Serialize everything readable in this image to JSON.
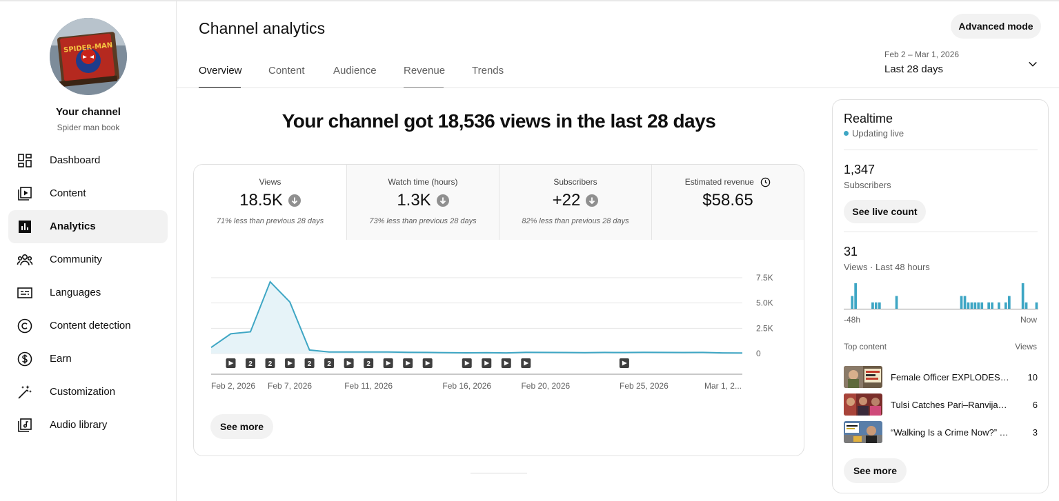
{
  "sidebar": {
    "channel_label": "Your channel",
    "channel_name": "Spider man book",
    "avatar_text": "SPIDER-MAN",
    "items": [
      {
        "label": "Dashboard",
        "icon": "dashboard-icon"
      },
      {
        "label": "Content",
        "icon": "content-icon"
      },
      {
        "label": "Analytics",
        "icon": "analytics-icon",
        "active": true
      },
      {
        "label": "Community",
        "icon": "community-icon"
      },
      {
        "label": "Languages",
        "icon": "languages-icon"
      },
      {
        "label": "Content detection",
        "icon": "copyright-icon"
      },
      {
        "label": "Earn",
        "icon": "dollar-icon"
      },
      {
        "label": "Customization",
        "icon": "magic-wand-icon"
      },
      {
        "label": "Audio library",
        "icon": "audio-library-icon"
      }
    ]
  },
  "header": {
    "title": "Channel analytics",
    "advanced_mode": "Advanced mode",
    "tabs": [
      "Overview",
      "Content",
      "Audience",
      "Revenue",
      "Trends"
    ],
    "active_tab": "Overview",
    "date_range_small": "Feb 2 – Mar 1, 2026",
    "date_range_label": "Last 28 days"
  },
  "main": {
    "headline": "Your channel got 18,536 views in the last 28 days",
    "metrics": [
      {
        "label": "Views",
        "value": "18.5K",
        "note": "71% less than previous 28 days",
        "trend": "down"
      },
      {
        "label": "Watch time (hours)",
        "value": "1.3K",
        "note": "73% less than previous 28 days",
        "trend": "down"
      },
      {
        "label": "Subscribers",
        "value": "+22",
        "note": "82% less than previous 28 days",
        "trend": "down"
      },
      {
        "label": "Estimated revenue",
        "value": "$58.65",
        "note": "",
        "trend": "none"
      }
    ],
    "see_more": "See more"
  },
  "chart_data": {
    "type": "area",
    "x_tick_labels": [
      "Feb 2, 2026",
      "Feb 7, 2026",
      "Feb 11, 2026",
      "Feb 16, 2026",
      "Feb 20, 2026",
      "Feb 25, 2026",
      "Mar 1, 2..."
    ],
    "x_tick_days": [
      0,
      4,
      8,
      13,
      17,
      22,
      27
    ],
    "y_tick_labels": [
      "7.5K",
      "5.0K",
      "2.5K",
      "0"
    ],
    "y_ticks": [
      7500,
      5000,
      2500,
      0
    ],
    "ylim": [
      0,
      7500
    ],
    "series": [
      {
        "values": [
          600,
          1950,
          2150,
          7100,
          5100,
          350,
          150,
          150,
          160,
          150,
          120,
          110,
          80,
          70,
          90,
          60,
          120,
          110,
          100,
          90,
          110,
          100,
          120,
          110,
          100,
          110,
          60,
          50
        ]
      }
    ],
    "markers": [
      {
        "day": 1,
        "label": ""
      },
      {
        "day": 2,
        "label": "2"
      },
      {
        "day": 3,
        "label": "2"
      },
      {
        "day": 4,
        "label": ""
      },
      {
        "day": 5,
        "label": "2"
      },
      {
        "day": 6,
        "label": "2"
      },
      {
        "day": 7,
        "label": ""
      },
      {
        "day": 8,
        "label": "2"
      },
      {
        "day": 9,
        "label": ""
      },
      {
        "day": 10,
        "label": ""
      },
      {
        "day": 11,
        "label": ""
      },
      {
        "day": 13,
        "label": ""
      },
      {
        "day": 14,
        "label": ""
      },
      {
        "day": 15,
        "label": ""
      },
      {
        "day": 16,
        "label": ""
      },
      {
        "day": 21,
        "label": ""
      }
    ],
    "line_color": "#3ea6c4",
    "fill_color": "#e6f3f8",
    "grid": true
  },
  "realtime": {
    "title": "Realtime",
    "status": "Updating live",
    "subscribers_value": "1,347",
    "subscribers_label": "Subscribers",
    "live_count_button": "See live count",
    "views_value": "31",
    "views_label": "Views · Last 48 hours",
    "spark_start": "-48h",
    "spark_end": "Now",
    "spark_values": [
      0,
      0,
      2,
      4,
      0,
      0,
      0,
      0,
      1,
      1,
      1,
      0,
      0,
      0,
      0,
      2,
      0,
      0,
      0,
      0,
      0,
      0,
      0,
      0,
      0,
      0,
      0,
      0,
      0,
      0,
      0,
      0,
      0,
      0,
      2,
      2,
      1,
      1,
      1,
      1,
      1,
      0,
      1,
      1,
      0,
      1,
      0,
      1,
      2,
      0,
      0,
      0,
      4,
      1,
      0,
      0,
      1
    ],
    "top_content_label": "Top content",
    "views_col_label": "Views",
    "top_content": [
      {
        "title": "Female Officer EXPLODES, L...",
        "views": "10"
      },
      {
        "title": "Tulsi Catches Pari–Ranvijay R...",
        "views": "6"
      },
      {
        "title": "“Walking Is a Crime Now?” T...",
        "views": "3"
      }
    ],
    "see_more": "See more"
  }
}
